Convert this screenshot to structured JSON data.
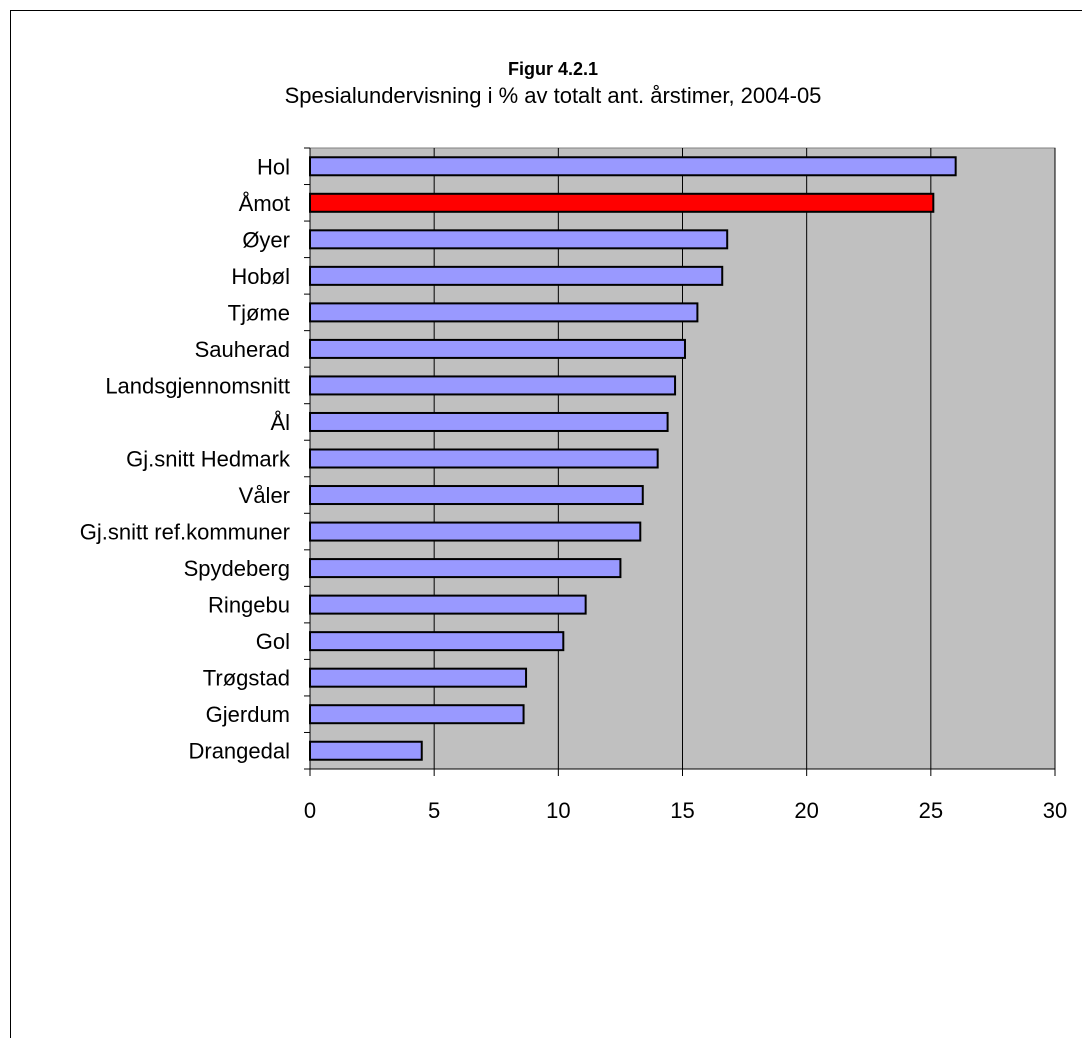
{
  "chart_data": {
    "type": "bar",
    "orientation": "horizontal",
    "title": "Figur 4.2.1",
    "subtitle": "Spesialundervisning i % av totalt ant. årstimer, 2004-05",
    "categories": [
      "Hol",
      "Åmot",
      "Øyer",
      "Hobøl",
      "Tjøme",
      "Sauherad",
      "Landsgjennomsnitt",
      "Ål",
      "Gj.snitt Hedmark",
      "Våler",
      "Gj.snitt ref.kommuner",
      "Spydeberg",
      "Ringebu",
      "Gol",
      "Trøgstad",
      "Gjerdum",
      "Drangedal"
    ],
    "values": [
      26.0,
      25.1,
      16.8,
      16.6,
      15.6,
      15.1,
      14.7,
      14.4,
      14.0,
      13.4,
      13.3,
      12.5,
      11.1,
      10.2,
      8.7,
      8.6,
      4.5
    ],
    "highlight_category": "Åmot",
    "xlim": [
      0,
      30
    ],
    "x_ticks": [
      0,
      5,
      10,
      15,
      20,
      25,
      30
    ],
    "grid": "vertical",
    "colors": {
      "bar": "#9999ff",
      "highlight": "#ff0000",
      "plot_background": "#c0c0c0",
      "gridline": "#000000"
    }
  }
}
